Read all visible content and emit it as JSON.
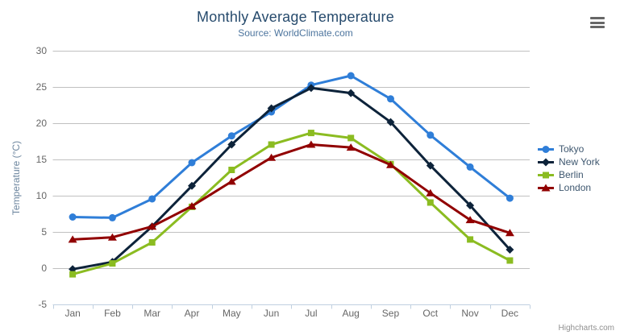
{
  "chart_data": {
    "type": "line",
    "title": "Monthly Average Temperature",
    "subtitle": "Source: WorldClimate.com",
    "xlabel": "",
    "ylabel": "Temperature (°C)",
    "ylim": [
      -5,
      30
    ],
    "y_ticks": [
      -5,
      0,
      5,
      10,
      15,
      20,
      25,
      30
    ],
    "grid": true,
    "legend_position": "right",
    "categories": [
      "Jan",
      "Feb",
      "Mar",
      "Apr",
      "May",
      "Jun",
      "Jul",
      "Aug",
      "Sep",
      "Oct",
      "Nov",
      "Dec"
    ],
    "series": [
      {
        "name": "Tokyo",
        "color": "#2f7ed8",
        "marker": "circle",
        "values": [
          7.0,
          6.9,
          9.5,
          14.5,
          18.2,
          21.5,
          25.2,
          26.5,
          23.3,
          18.3,
          13.9,
          9.6
        ]
      },
      {
        "name": "New York",
        "color": "#0d233a",
        "marker": "diamond",
        "values": [
          -0.2,
          0.8,
          5.7,
          11.3,
          17.0,
          22.0,
          24.8,
          24.1,
          20.1,
          14.1,
          8.6,
          2.5
        ]
      },
      {
        "name": "Berlin",
        "color": "#8bbc21",
        "marker": "square",
        "values": [
          -0.9,
          0.6,
          3.5,
          8.4,
          13.5,
          17.0,
          18.6,
          17.9,
          14.3,
          9.0,
          3.9,
          1.0
        ]
      },
      {
        "name": "London",
        "color": "#910000",
        "marker": "triangle",
        "values": [
          3.9,
          4.2,
          5.7,
          8.5,
          11.9,
          15.2,
          17.0,
          16.6,
          14.2,
          10.3,
          6.6,
          4.8
        ]
      }
    ]
  },
  "credits": "Highcharts.com",
  "icons": {
    "context_menu": "hamburger-menu-icon"
  },
  "colors": {
    "title": "#274b6d",
    "subtitle": "#4d759e",
    "axis_labels": "#666666",
    "axis_title": "#6d869f",
    "gridline": "#c0c0c0",
    "axis_line": "#c0d0e0",
    "legend_text": "#3e576f",
    "credit": "#909090",
    "menu_icon": "#666666",
    "background": "#ffffff"
  }
}
